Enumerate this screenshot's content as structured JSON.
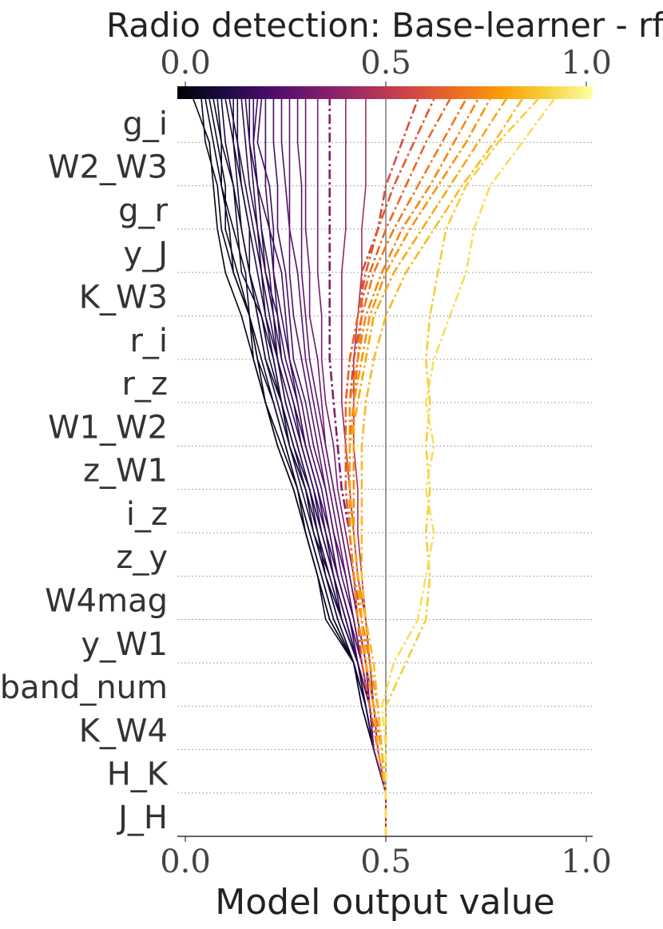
{
  "chart_data": {
    "type": "line",
    "title": "Radio detection: Base-learner - rf",
    "xlabel": "Model output value",
    "ylabel": "",
    "xlim": [
      0.0,
      1.0
    ],
    "x_ticks": [
      "0.0",
      "0.5",
      "1.0"
    ],
    "colorbar_ticks": [
      "0.0",
      "0.5",
      "1.0"
    ],
    "colormap": [
      "#000004",
      "#1b0c41",
      "#4a0c6b",
      "#781c6d",
      "#a52c60",
      "#cf4446",
      "#ed6925",
      "#fb9b06",
      "#f7d13d",
      "#fcffa4"
    ],
    "base_value": 0.5,
    "features": [
      "g_i",
      "W2_W3",
      "g_r",
      "y_J",
      "K_W3",
      "r_i",
      "r_z",
      "W1_W2",
      "z_W1",
      "i_z",
      "z_y",
      "W4mag",
      "y_W1",
      "band_num",
      "K_W4",
      "H_K",
      "J_H"
    ],
    "grid": "horizontal dotted",
    "baseline_color": "#999999",
    "series": [
      {
        "final": 0.02,
        "style": "solid",
        "path": [
          0.5,
          0.47,
          0.44,
          0.42,
          0.36,
          0.33,
          0.3,
          0.28,
          0.24,
          0.2,
          0.17,
          0.14,
          0.1,
          0.08,
          0.07,
          0.06,
          0.03
        ]
      },
      {
        "final": 0.04,
        "style": "solid",
        "path": [
          0.5,
          0.47,
          0.44,
          0.42,
          0.36,
          0.33,
          0.3,
          0.27,
          0.23,
          0.2,
          0.17,
          0.16,
          0.12,
          0.09,
          0.08,
          0.05,
          0.02
        ]
      },
      {
        "final": 0.05,
        "style": "solid",
        "path": [
          0.5,
          0.47,
          0.45,
          0.42,
          0.35,
          0.33,
          0.3,
          0.27,
          0.23,
          0.2,
          0.18,
          0.16,
          0.12,
          0.11,
          0.09,
          0.07,
          0.04
        ]
      },
      {
        "final": 0.06,
        "style": "solid",
        "path": [
          0.5,
          0.47,
          0.45,
          0.42,
          0.37,
          0.34,
          0.31,
          0.28,
          0.25,
          0.22,
          0.18,
          0.16,
          0.13,
          0.1,
          0.1,
          0.08,
          0.07
        ]
      },
      {
        "final": 0.07,
        "style": "solid",
        "path": [
          0.5,
          0.47,
          0.45,
          0.42,
          0.37,
          0.34,
          0.31,
          0.28,
          0.25,
          0.22,
          0.19,
          0.16,
          0.15,
          0.12,
          0.09,
          0.09,
          0.06
        ]
      },
      {
        "final": 0.08,
        "style": "solid",
        "path": [
          0.5,
          0.47,
          0.45,
          0.42,
          0.38,
          0.35,
          0.32,
          0.3,
          0.26,
          0.24,
          0.21,
          0.19,
          0.14,
          0.13,
          0.12,
          0.09,
          0.06
        ]
      },
      {
        "final": 0.09,
        "style": "solid",
        "path": [
          0.5,
          0.47,
          0.45,
          0.42,
          0.38,
          0.35,
          0.33,
          0.3,
          0.26,
          0.24,
          0.2,
          0.18,
          0.16,
          0.14,
          0.12,
          0.1,
          0.08
        ]
      },
      {
        "final": 0.1,
        "style": "solid",
        "path": [
          0.5,
          0.47,
          0.45,
          0.43,
          0.39,
          0.36,
          0.32,
          0.29,
          0.26,
          0.23,
          0.2,
          0.18,
          0.16,
          0.14,
          0.13,
          0.12,
          0.09
        ]
      },
      {
        "final": 0.11,
        "style": "solid",
        "path": [
          0.5,
          0.47,
          0.45,
          0.43,
          0.39,
          0.35,
          0.33,
          0.3,
          0.27,
          0.24,
          0.22,
          0.19,
          0.16,
          0.16,
          0.14,
          0.13,
          0.12
        ]
      },
      {
        "final": 0.12,
        "style": "solid",
        "path": [
          0.5,
          0.47,
          0.45,
          0.43,
          0.39,
          0.36,
          0.33,
          0.31,
          0.27,
          0.24,
          0.22,
          0.2,
          0.18,
          0.16,
          0.14,
          0.12,
          0.12
        ]
      },
      {
        "final": 0.13,
        "style": "solid",
        "path": [
          0.5,
          0.47,
          0.45,
          0.43,
          0.39,
          0.37,
          0.34,
          0.31,
          0.28,
          0.25,
          0.23,
          0.21,
          0.19,
          0.17,
          0.15,
          0.13,
          0.11
        ]
      },
      {
        "final": 0.14,
        "style": "solid",
        "path": [
          0.5,
          0.47,
          0.45,
          0.43,
          0.4,
          0.37,
          0.34,
          0.31,
          0.28,
          0.25,
          0.23,
          0.2,
          0.19,
          0.18,
          0.16,
          0.15,
          0.15
        ]
      },
      {
        "final": 0.15,
        "style": "solid",
        "path": [
          0.5,
          0.47,
          0.46,
          0.43,
          0.4,
          0.37,
          0.34,
          0.32,
          0.29,
          0.26,
          0.23,
          0.22,
          0.2,
          0.19,
          0.18,
          0.16,
          0.13
        ]
      },
      {
        "final": 0.16,
        "style": "solid",
        "path": [
          0.5,
          0.47,
          0.46,
          0.43,
          0.4,
          0.37,
          0.35,
          0.32,
          0.29,
          0.27,
          0.24,
          0.23,
          0.2,
          0.18,
          0.17,
          0.16,
          0.14
        ]
      },
      {
        "final": 0.17,
        "style": "solid",
        "path": [
          0.5,
          0.47,
          0.46,
          0.43,
          0.41,
          0.38,
          0.35,
          0.33,
          0.3,
          0.27,
          0.24,
          0.22,
          0.21,
          0.19,
          0.18,
          0.17,
          0.17
        ]
      },
      {
        "final": 0.18,
        "style": "solid",
        "path": [
          0.5,
          0.47,
          0.46,
          0.43,
          0.41,
          0.38,
          0.35,
          0.33,
          0.3,
          0.28,
          0.25,
          0.23,
          0.22,
          0.21,
          0.18,
          0.17,
          0.16
        ]
      },
      {
        "final": 0.19,
        "style": "solid",
        "path": [
          0.5,
          0.47,
          0.46,
          0.44,
          0.41,
          0.38,
          0.36,
          0.33,
          0.3,
          0.28,
          0.26,
          0.24,
          0.22,
          0.22,
          0.21,
          0.18,
          0.18
        ]
      },
      {
        "final": 0.2,
        "style": "solid",
        "path": [
          0.5,
          0.47,
          0.46,
          0.44,
          0.41,
          0.38,
          0.36,
          0.34,
          0.31,
          0.29,
          0.26,
          0.25,
          0.24,
          0.21,
          0.2,
          0.2,
          0.21
        ]
      },
      {
        "final": 0.22,
        "style": "solid",
        "path": [
          0.5,
          0.47,
          0.46,
          0.44,
          0.42,
          0.39,
          0.37,
          0.35,
          0.32,
          0.3,
          0.27,
          0.26,
          0.25,
          0.23,
          0.23,
          0.22,
          0.2
        ]
      },
      {
        "final": 0.24,
        "style": "solid",
        "path": [
          0.5,
          0.47,
          0.46,
          0.44,
          0.42,
          0.4,
          0.37,
          0.35,
          0.33,
          0.31,
          0.29,
          0.27,
          0.26,
          0.26,
          0.25,
          0.24,
          0.22
        ]
      },
      {
        "final": 0.26,
        "style": "solid",
        "path": [
          0.5,
          0.47,
          0.46,
          0.44,
          0.42,
          0.4,
          0.38,
          0.36,
          0.34,
          0.32,
          0.3,
          0.29,
          0.28,
          0.26,
          0.26,
          0.26,
          0.26
        ]
      },
      {
        "final": 0.28,
        "style": "solid",
        "path": [
          0.5,
          0.47,
          0.46,
          0.45,
          0.43,
          0.41,
          0.39,
          0.37,
          0.35,
          0.33,
          0.31,
          0.3,
          0.29,
          0.29,
          0.29,
          0.28,
          0.26
        ]
      },
      {
        "final": 0.3,
        "style": "solid",
        "path": [
          0.5,
          0.47,
          0.46,
          0.45,
          0.43,
          0.41,
          0.39,
          0.37,
          0.35,
          0.34,
          0.33,
          0.31,
          0.31,
          0.3,
          0.3,
          0.3,
          0.3
        ]
      },
      {
        "final": 0.33,
        "style": "solid",
        "path": [
          0.5,
          0.48,
          0.47,
          0.45,
          0.43,
          0.42,
          0.4,
          0.38,
          0.37,
          0.35,
          0.34,
          0.34,
          0.33,
          0.33,
          0.33,
          0.33,
          0.33
        ]
      },
      {
        "final": 0.36,
        "style": "dashdot",
        "path": [
          0.5,
          0.48,
          0.47,
          0.45,
          0.44,
          0.42,
          0.41,
          0.39,
          0.38,
          0.37,
          0.36,
          0.36,
          0.36,
          0.36,
          0.36,
          0.36,
          0.36
        ]
      },
      {
        "final": 0.4,
        "style": "solid",
        "path": [
          0.5,
          0.48,
          0.47,
          0.46,
          0.45,
          0.43,
          0.42,
          0.41,
          0.4,
          0.39,
          0.39,
          0.39,
          0.39,
          0.4,
          0.4,
          0.4,
          0.41
        ]
      },
      {
        "final": 0.45,
        "style": "solid",
        "path": [
          0.5,
          0.48,
          0.47,
          0.46,
          0.45,
          0.44,
          0.43,
          0.43,
          0.42,
          0.42,
          0.42,
          0.43,
          0.44,
          0.44,
          0.45,
          0.45,
          0.45
        ]
      },
      {
        "final": 0.58,
        "style": "dashdot",
        "path": [
          0.5,
          0.48,
          0.47,
          0.45,
          0.44,
          0.42,
          0.41,
          0.41,
          0.41,
          0.41,
          0.42,
          0.44,
          0.44,
          0.48,
          0.5,
          0.54,
          0.58
        ]
      },
      {
        "final": 0.62,
        "style": "dashdot",
        "path": [
          0.5,
          0.48,
          0.46,
          0.44,
          0.43,
          0.42,
          0.41,
          0.4,
          0.4,
          0.4,
          0.41,
          0.43,
          0.45,
          0.48,
          0.52,
          0.57,
          0.62
        ]
      },
      {
        "final": 0.66,
        "style": "dashdot",
        "path": [
          0.5,
          0.49,
          0.47,
          0.45,
          0.44,
          0.42,
          0.41,
          0.41,
          0.4,
          0.4,
          0.41,
          0.43,
          0.46,
          0.5,
          0.55,
          0.6,
          0.66
        ]
      },
      {
        "final": 0.7,
        "style": "dashdot",
        "path": [
          0.5,
          0.49,
          0.48,
          0.46,
          0.44,
          0.43,
          0.42,
          0.41,
          0.41,
          0.42,
          0.43,
          0.44,
          0.47,
          0.52,
          0.58,
          0.64,
          0.7
        ]
      },
      {
        "final": 0.73,
        "style": "dashdot",
        "path": [
          0.5,
          0.48,
          0.47,
          0.45,
          0.43,
          0.42,
          0.41,
          0.41,
          0.41,
          0.41,
          0.43,
          0.45,
          0.49,
          0.54,
          0.61,
          0.67,
          0.73
        ]
      },
      {
        "final": 0.76,
        "style": "dashdot",
        "path": [
          0.5,
          0.49,
          0.48,
          0.46,
          0.45,
          0.43,
          0.42,
          0.42,
          0.42,
          0.42,
          0.44,
          0.46,
          0.5,
          0.56,
          0.63,
          0.7,
          0.76
        ]
      },
      {
        "final": 0.8,
        "style": "dashdot",
        "path": [
          0.5,
          0.48,
          0.47,
          0.45,
          0.44,
          0.43,
          0.42,
          0.41,
          0.41,
          0.43,
          0.45,
          0.47,
          0.52,
          0.59,
          0.66,
          0.73,
          0.8
        ]
      },
      {
        "final": 0.84,
        "style": "dashdot",
        "path": [
          0.5,
          0.49,
          0.48,
          0.47,
          0.45,
          0.44,
          0.44,
          0.44,
          0.44,
          0.45,
          0.47,
          0.5,
          0.55,
          0.62,
          0.69,
          0.77,
          0.84
        ]
      },
      {
        "final": 0.88,
        "style": "dashdot",
        "path": [
          0.5,
          0.5,
          0.5,
          0.55,
          0.6,
          0.61,
          0.6,
          0.61,
          0.6,
          0.61,
          0.6,
          0.61,
          0.63,
          0.65,
          0.7,
          0.78,
          0.88
        ]
      },
      {
        "final": 0.92,
        "style": "dashdot",
        "path": [
          0.5,
          0.5,
          0.49,
          0.52,
          0.58,
          0.6,
          0.62,
          0.6,
          0.62,
          0.6,
          0.62,
          0.66,
          0.7,
          0.72,
          0.76,
          0.84,
          0.92
        ]
      }
    ]
  }
}
